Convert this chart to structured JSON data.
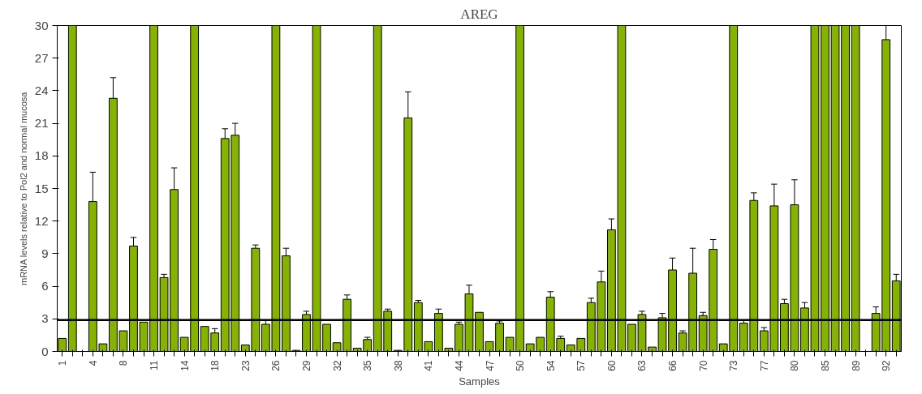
{
  "chart_data": {
    "type": "bar",
    "title": "AREG",
    "xlabel": "Samples",
    "ylabel": "mRNA levels relative to Pol2 and normal mucosa",
    "categories": [
      "1",
      null,
      null,
      "4",
      null,
      null,
      "8",
      null,
      null,
      "11",
      null,
      null,
      "14",
      null,
      null,
      "18",
      null,
      null,
      "23",
      null,
      null,
      "26",
      null,
      null,
      "29",
      null,
      null,
      "32",
      null,
      null,
      "35",
      null,
      null,
      "38",
      null,
      null,
      "41",
      null,
      null,
      "44",
      null,
      null,
      "47",
      null,
      null,
      "50",
      null,
      null,
      "54",
      null,
      null,
      "57",
      null,
      null,
      "60",
      null,
      null,
      "63",
      null,
      null,
      "66",
      null,
      null,
      "70",
      null,
      null,
      "73",
      null,
      null,
      "77",
      null,
      null,
      "80",
      null,
      null,
      "85",
      null,
      null,
      "89",
      null,
      null,
      "92",
      null
    ],
    "series": [
      {
        "color": "#86b300",
        "values": [
          1.2,
          30,
          0,
          13.8,
          0.7,
          23.3,
          1.9,
          9.7,
          2.7,
          30,
          6.8,
          14.9,
          1.3,
          30,
          2.3,
          1.7,
          19.6,
          19.9,
          0.6,
          9.5,
          2.5,
          30,
          8.8,
          0.1,
          3.4,
          30,
          2.5,
          0.8,
          4.8,
          0.3,
          1.1,
          30,
          3.7,
          0.1,
          21.5,
          4.5,
          0.9,
          3.5,
          0.3,
          2.5,
          5.3,
          3.6,
          0.9,
          2.6,
          1.3,
          30,
          0.7,
          1.3,
          5.0,
          1.2,
          0.6,
          1.2,
          4.5,
          6.4,
          11.2,
          30,
          2.5,
          3.4,
          0.4,
          3.1,
          7.5,
          1.7,
          7.2,
          3.3,
          9.4,
          0.7,
          30,
          2.6,
          13.9,
          1.9,
          13.4,
          4.4,
          13.5,
          4.0,
          30,
          30,
          30,
          30,
          30,
          0,
          3.5,
          28.7,
          6.5
        ],
        "errors": [
          null,
          null,
          null,
          [
            13.8,
            16.5
          ],
          null,
          [
            23.3,
            25.2
          ],
          null,
          [
            9.7,
            10.5
          ],
          null,
          null,
          [
            6.8,
            7.1
          ],
          [
            14.9,
            16.9
          ],
          null,
          null,
          null,
          [
            1.7,
            2.1
          ],
          [
            19.6,
            20.5
          ],
          [
            19.9,
            21.0
          ],
          null,
          [
            9.5,
            9.8
          ],
          [
            2.5,
            2.9
          ],
          null,
          [
            8.8,
            9.5
          ],
          null,
          [
            3.4,
            3.7
          ],
          null,
          null,
          null,
          [
            4.8,
            5.2
          ],
          null,
          [
            1.1,
            1.3
          ],
          null,
          [
            3.7,
            3.9
          ],
          null,
          [
            21.5,
            23.9
          ],
          [
            4.5,
            4.7
          ],
          null,
          [
            3.5,
            3.9
          ],
          null,
          [
            2.5,
            2.7
          ],
          [
            5.3,
            6.1
          ],
          null,
          null,
          [
            2.6,
            2.8
          ],
          null,
          null,
          null,
          null,
          [
            5.0,
            5.5
          ],
          [
            1.2,
            1.4
          ],
          null,
          null,
          [
            4.5,
            4.9
          ],
          [
            6.4,
            7.4
          ],
          [
            11.2,
            12.2
          ],
          null,
          null,
          [
            3.4,
            3.7
          ],
          null,
          [
            3.1,
            3.5
          ],
          [
            7.5,
            8.6
          ],
          [
            1.7,
            1.9
          ],
          [
            7.2,
            9.5
          ],
          [
            3.3,
            3.6
          ],
          [
            9.4,
            10.3
          ],
          null,
          null,
          [
            2.6,
            2.9
          ],
          [
            13.9,
            14.6
          ],
          [
            1.9,
            2.2
          ],
          [
            13.4,
            15.4
          ],
          [
            4.4,
            4.8
          ],
          [
            13.5,
            15.8
          ],
          [
            4.0,
            4.5
          ],
          null,
          null,
          null,
          null,
          null,
          null,
          [
            3.5,
            4.1
          ],
          [
            28.7,
            30
          ],
          [
            6.5,
            7.1
          ]
        ]
      }
    ],
    "ylim": [
      0,
      30
    ],
    "yticks": [
      0,
      3,
      6,
      9,
      12,
      15,
      18,
      21,
      24,
      27,
      30
    ],
    "ref_lines": [
      {
        "axis": "y",
        "value": 2.9,
        "color": "#000000"
      }
    ],
    "grid": false
  }
}
